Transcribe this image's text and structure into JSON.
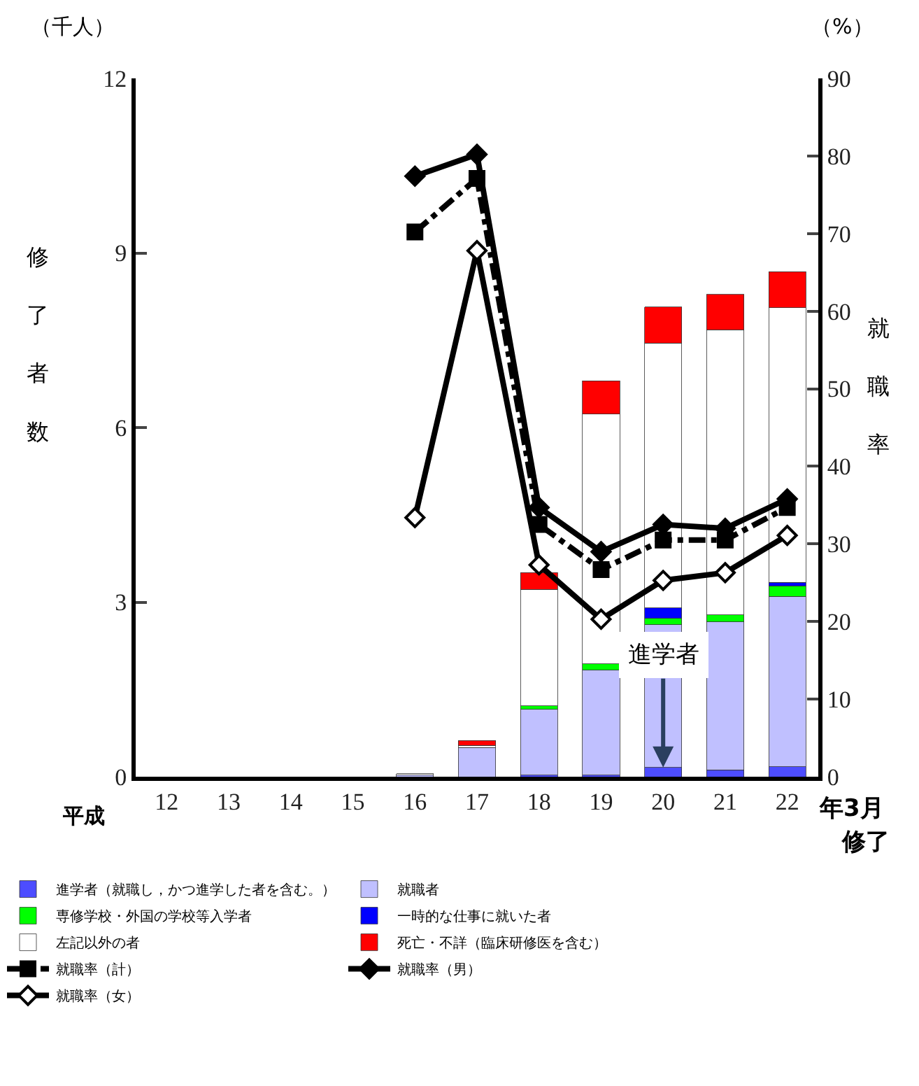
{
  "chart_data": {
    "type": "bar",
    "stacked": true,
    "categories": [
      "12",
      "13",
      "14",
      "15",
      "16",
      "17",
      "18",
      "19",
      "20",
      "21",
      "22"
    ],
    "ylabel": "修了者数",
    "y2label": "就職率",
    "annotations": [
      "（千人）",
      "（%）",
      "平成",
      "年3月",
      "修了",
      {
        "text": "進学者",
        "x": "20",
        "y": 0.16
      }
    ],
    "ylim": [
      0,
      12
    ],
    "yticks": [
      0,
      3,
      6,
      9,
      12
    ],
    "y2lim": [
      0,
      90
    ],
    "y2ticks": [
      0,
      10,
      20,
      30,
      40,
      50,
      60,
      70,
      80,
      90
    ],
    "legend": "bottom",
    "series": [
      {
        "name": "進学者（就職し，かつ進学した者を含む。）",
        "color": "#4d4dff",
        "values": [
          null,
          null,
          null,
          null,
          null,
          null,
          0.03,
          0.03,
          0.16,
          0.12,
          0.17
        ]
      },
      {
        "name": "就職者",
        "color": "#c0c0ff",
        "values": [
          null,
          null,
          null,
          null,
          0.03,
          0.5,
          1.13,
          1.8,
          2.45,
          2.54,
          2.93
        ]
      },
      {
        "name": "専修学校・外国の学校等入学者",
        "color": "#00ff00",
        "values": [
          null,
          null,
          null,
          null,
          null,
          null,
          0.06,
          0.11,
          0.11,
          0.12,
          0.18
        ]
      },
      {
        "name": "一時的な仕事に就いた者",
        "color": "#0000ff",
        "values": [
          null,
          null,
          null,
          null,
          null,
          null,
          null,
          null,
          0.18,
          null,
          0.06
        ]
      },
      {
        "name": "左記以外の者",
        "color": "#ffffff",
        "values": [
          null,
          null,
          null,
          null,
          0.02,
          0.04,
          2.0,
          4.29,
          4.55,
          4.9,
          4.72
        ]
      },
      {
        "name": "死亡・不詳（臨床研修医を含む）",
        "color": "#ff0000",
        "values": [
          null,
          null,
          null,
          null,
          null,
          0.08,
          0.29,
          0.57,
          0.62,
          0.61,
          0.62
        ]
      },
      {
        "name": "就職率（計）",
        "type": "line",
        "axis": "y2",
        "marker": "square",
        "line_style": "dashed",
        "color": "#000000",
        "values": [
          null,
          null,
          null,
          null,
          70.2,
          77.1,
          32.5,
          26.7,
          30.5,
          30.5,
          34.7
        ]
      },
      {
        "name": "就職率（男）",
        "type": "line",
        "axis": "y2",
        "marker": "diamond",
        "line_style": "solid",
        "color": "#000000",
        "values": [
          null,
          null,
          null,
          null,
          77.4,
          80.2,
          34.7,
          29.0,
          32.5,
          32.0,
          35.8
        ]
      },
      {
        "name": "就職率（女）",
        "type": "line",
        "axis": "y2",
        "marker": "diamond",
        "line_style": "solid",
        "color": "#000000",
        "values": [
          null,
          null,
          null,
          null,
          33.4,
          67.8,
          27.3,
          20.3,
          25.3,
          26.3,
          31.1
        ]
      }
    ]
  }
}
